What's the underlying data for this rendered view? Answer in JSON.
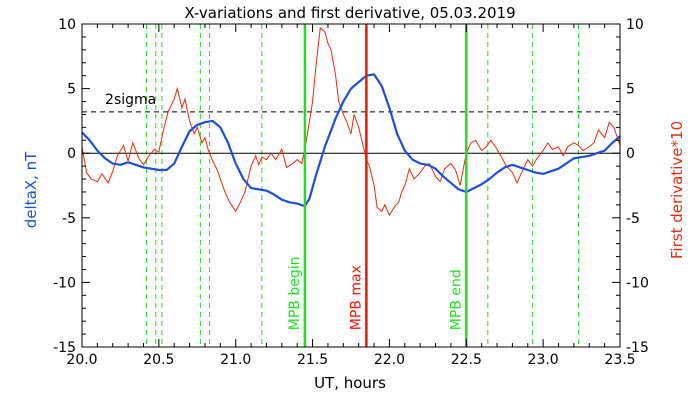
{
  "chart_data": {
    "type": "line",
    "title": "X-variations and first derivative, 05.03.2019",
    "xlabel": "UT, hours",
    "ylabel_left": "deltaX, nT",
    "ylabel_right": "First derivative*10",
    "xlim": [
      20.0,
      23.5
    ],
    "ylim": [
      -15,
      10
    ],
    "x_ticks": [
      "20.0",
      "20.5",
      "21.0",
      "21.5",
      "22.0",
      "22.5",
      "23.0",
      "23.5"
    ],
    "y_ticks": [
      "10",
      "5",
      "0",
      "-5",
      "-10",
      "-15"
    ],
    "colors": {
      "deltaX": "#1f4fd8",
      "derivative": "#e32b12",
      "green": "#22dd22",
      "red": "#ee1a00",
      "axis": "#000000"
    },
    "threshold": {
      "label": "2sigma",
      "value": 3.2
    },
    "zero_line": 0,
    "dashed_markers_x": [
      20.42,
      20.48,
      20.52,
      20.77,
      20.83,
      21.17,
      22.64,
      22.93,
      23.23
    ],
    "events": [
      {
        "label": "MPB begin",
        "x": 21.45,
        "color": "#22dd22"
      },
      {
        "label": "MPB max",
        "x": 21.85,
        "color": "#ee1a00"
      },
      {
        "label": "MPB end",
        "x": 22.5,
        "color": "#22dd22"
      }
    ],
    "series": [
      {
        "name": "deltaX, nT",
        "color": "#1f4fd8",
        "points": [
          [
            20.0,
            1.6
          ],
          [
            20.05,
            1.0
          ],
          [
            20.1,
            0.2
          ],
          [
            20.15,
            -0.4
          ],
          [
            20.2,
            -0.8
          ],
          [
            20.25,
            -0.9
          ],
          [
            20.3,
            -0.7
          ],
          [
            20.35,
            -0.9
          ],
          [
            20.4,
            -1.1
          ],
          [
            20.45,
            -1.2
          ],
          [
            20.5,
            -1.3
          ],
          [
            20.55,
            -1.3
          ],
          [
            20.6,
            -0.8
          ],
          [
            20.65,
            0.5
          ],
          [
            20.7,
            1.7
          ],
          [
            20.75,
            2.2
          ],
          [
            20.8,
            2.4
          ],
          [
            20.85,
            2.5
          ],
          [
            20.9,
            2.0
          ],
          [
            20.95,
            0.8
          ],
          [
            21.0,
            -0.8
          ],
          [
            21.05,
            -2.0
          ],
          [
            21.1,
            -2.7
          ],
          [
            21.15,
            -2.8
          ],
          [
            21.2,
            -2.9
          ],
          [
            21.25,
            -3.2
          ],
          [
            21.3,
            -3.6
          ],
          [
            21.35,
            -3.8
          ],
          [
            21.4,
            -3.9
          ],
          [
            21.45,
            -4.1
          ],
          [
            21.48,
            -3.5
          ],
          [
            21.52,
            -1.8
          ],
          [
            21.58,
            0.5
          ],
          [
            21.65,
            2.7
          ],
          [
            21.7,
            4.0
          ],
          [
            21.75,
            5.0
          ],
          [
            21.8,
            5.5
          ],
          [
            21.85,
            6.0
          ],
          [
            21.9,
            6.1
          ],
          [
            21.95,
            5.2
          ],
          [
            22.0,
            3.5
          ],
          [
            22.05,
            1.5
          ],
          [
            22.1,
            0.2
          ],
          [
            22.15,
            -0.5
          ],
          [
            22.2,
            -0.8
          ],
          [
            22.25,
            -0.9
          ],
          [
            22.3,
            -1.2
          ],
          [
            22.35,
            -1.8
          ],
          [
            22.4,
            -2.3
          ],
          [
            22.45,
            -2.8
          ],
          [
            22.5,
            -3.0
          ],
          [
            22.55,
            -2.7
          ],
          [
            22.6,
            -2.4
          ],
          [
            22.65,
            -2.0
          ],
          [
            22.7,
            -1.5
          ],
          [
            22.75,
            -1.1
          ],
          [
            22.8,
            -0.9
          ],
          [
            22.85,
            -1.1
          ],
          [
            22.9,
            -1.3
          ],
          [
            22.95,
            -1.5
          ],
          [
            23.0,
            -1.6
          ],
          [
            23.05,
            -1.4
          ],
          [
            23.1,
            -1.2
          ],
          [
            23.15,
            -0.8
          ],
          [
            23.2,
            -0.4
          ],
          [
            23.25,
            -0.3
          ],
          [
            23.3,
            -0.2
          ],
          [
            23.35,
            0.0
          ],
          [
            23.4,
            0.2
          ],
          [
            23.45,
            0.8
          ],
          [
            23.5,
            1.3
          ]
        ]
      },
      {
        "name": "First derivative*10",
        "color": "#e32b12",
        "points": [
          [
            20.0,
            0.5
          ],
          [
            20.03,
            -1.5
          ],
          [
            20.06,
            -2.0
          ],
          [
            20.1,
            -2.2
          ],
          [
            20.13,
            -1.6
          ],
          [
            20.17,
            -2.3
          ],
          [
            20.2,
            -1.4
          ],
          [
            20.23,
            -0.2
          ],
          [
            20.27,
            0.6
          ],
          [
            20.3,
            -0.6
          ],
          [
            20.33,
            0.8
          ],
          [
            20.37,
            -0.4
          ],
          [
            20.4,
            -0.9
          ],
          [
            20.43,
            -0.3
          ],
          [
            20.47,
            0.3
          ],
          [
            20.5,
            0.1
          ],
          [
            20.53,
            1.8
          ],
          [
            20.56,
            3.2
          ],
          [
            20.6,
            4.2
          ],
          [
            20.62,
            5.0
          ],
          [
            20.65,
            3.5
          ],
          [
            20.67,
            4.2
          ],
          [
            20.7,
            2.5
          ],
          [
            20.73,
            1.5
          ],
          [
            20.75,
            2.0
          ],
          [
            20.78,
            0.8
          ],
          [
            20.8,
            1.2
          ],
          [
            20.82,
            0.3
          ],
          [
            20.85,
            -0.6
          ],
          [
            20.88,
            -1.3
          ],
          [
            20.9,
            -2.0
          ],
          [
            20.93,
            -3.0
          ],
          [
            20.96,
            -3.8
          ],
          [
            21.0,
            -4.5
          ],
          [
            21.03,
            -3.8
          ],
          [
            21.06,
            -3.0
          ],
          [
            21.08,
            -2.0
          ],
          [
            21.1,
            -1.0
          ],
          [
            21.13,
            -0.2
          ],
          [
            21.15,
            -0.9
          ],
          [
            21.17,
            -0.3
          ],
          [
            21.2,
            -0.5
          ],
          [
            21.23,
            0.0
          ],
          [
            21.26,
            -0.5
          ],
          [
            21.3,
            0.3
          ],
          [
            21.33,
            -1.1
          ],
          [
            21.37,
            -0.8
          ],
          [
            21.4,
            -0.5
          ],
          [
            21.43,
            -0.8
          ],
          [
            21.46,
            1.0
          ],
          [
            21.5,
            4.0
          ],
          [
            21.52,
            6.5
          ],
          [
            21.55,
            9.7
          ],
          [
            21.58,
            9.4
          ],
          [
            21.6,
            8.5
          ],
          [
            21.62,
            8.0
          ],
          [
            21.65,
            6.0
          ],
          [
            21.67,
            4.0
          ],
          [
            21.7,
            3.0
          ],
          [
            21.72,
            2.5
          ],
          [
            21.75,
            1.5
          ],
          [
            21.77,
            3.0
          ],
          [
            21.8,
            2.0
          ],
          [
            21.82,
            1.0
          ],
          [
            21.85,
            -0.5
          ],
          [
            21.87,
            -1.0
          ],
          [
            21.9,
            -2.5
          ],
          [
            21.92,
            -4.2
          ],
          [
            21.95,
            -4.5
          ],
          [
            21.97,
            -4.0
          ],
          [
            22.0,
            -4.8
          ],
          [
            22.03,
            -4.2
          ],
          [
            22.06,
            -3.8
          ],
          [
            22.08,
            -3.0
          ],
          [
            22.1,
            -2.5
          ],
          [
            22.13,
            -1.2
          ],
          [
            22.16,
            -2.0
          ],
          [
            22.2,
            -1.5
          ],
          [
            22.23,
            -1.0
          ],
          [
            22.26,
            -0.8
          ],
          [
            22.3,
            -1.8
          ],
          [
            22.33,
            -2.2
          ],
          [
            22.36,
            -1.2
          ],
          [
            22.4,
            -0.8
          ],
          [
            22.43,
            -1.3
          ],
          [
            22.46,
            -2.5
          ],
          [
            22.5,
            0.0
          ],
          [
            22.53,
            0.8
          ],
          [
            22.56,
            1.0
          ],
          [
            22.6,
            0.2
          ],
          [
            22.63,
            0.5
          ],
          [
            22.66,
            1.0
          ],
          [
            22.7,
            0.3
          ],
          [
            22.73,
            -0.3
          ],
          [
            22.76,
            -1.0
          ],
          [
            22.8,
            -1.5
          ],
          [
            22.83,
            -2.3
          ],
          [
            22.86,
            -1.5
          ],
          [
            22.9,
            -0.5
          ],
          [
            22.93,
            -1.0
          ],
          [
            22.96,
            -0.4
          ],
          [
            23.0,
            0.2
          ],
          [
            23.03,
            0.8
          ],
          [
            23.06,
            0.3
          ],
          [
            23.1,
            0.5
          ],
          [
            23.13,
            -0.2
          ],
          [
            23.16,
            0.5
          ],
          [
            23.2,
            0.8
          ],
          [
            23.23,
            0.6
          ],
          [
            23.26,
            0.2
          ],
          [
            23.3,
            0.5
          ],
          [
            23.33,
            0.8
          ],
          [
            23.36,
            1.8
          ],
          [
            23.4,
            1.2
          ],
          [
            23.43,
            2.4
          ],
          [
            23.46,
            2.0
          ],
          [
            23.5,
            0.6
          ]
        ]
      }
    ]
  }
}
